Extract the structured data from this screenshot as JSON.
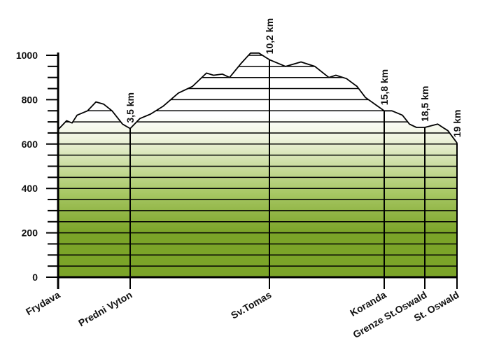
{
  "chart_data": {
    "type": "area",
    "color": "#7ba428",
    "x": [
      0,
      0.41,
      0.68,
      0.92,
      1.43,
      1.84,
      2.21,
      2.62,
      3.13,
      3.5,
      3.97,
      4.48,
      5.08,
      5.82,
      6.5,
      7.17,
      7.51,
      7.94,
      8.28,
      8.85,
      9.29,
      9.69,
      10.2,
      10.99,
      11.74,
      12.42,
      13.1,
      13.44,
      13.96,
      14.47,
      14.88,
      15.49,
      15.8,
      16.31,
      17.01,
      17.48,
      17.94,
      18.5,
      18.7,
      18.86,
      19
    ],
    "values": [
      665,
      705,
      695,
      730,
      750,
      790,
      780,
      750,
      690,
      670,
      715,
      735,
      770,
      830,
      860,
      920,
      910,
      915,
      900,
      965,
      1010,
      1010,
      980,
      950,
      970,
      950,
      900,
      910,
      895,
      860,
      810,
      770,
      750,
      750,
      730,
      690,
      675,
      675,
      690,
      660,
      605
    ],
    "xlim": [
      0,
      19
    ],
    "ylim": [
      0,
      1000
    ],
    "yticks": [
      0,
      200,
      400,
      600,
      800,
      1000
    ],
    "minor_yticks": [
      50,
      100,
      150,
      250,
      300,
      350,
      450,
      500,
      550,
      650,
      700,
      750,
      850,
      900,
      950
    ],
    "grid": true,
    "waypoints": [
      {
        "name": "Frydava",
        "km": 0
      },
      {
        "name": "Predni Vyton",
        "km": {
          "value": 3.5,
          "label": "3,5 km"
        }
      },
      {
        "name": "Sv.Tomas",
        "km": {
          "value": 10.2,
          "label": "10,2 km"
        }
      },
      {
        "name": "Koranda",
        "km": {
          "value": 15.8,
          "label": "15,8 km"
        }
      },
      {
        "name": "Grenze St.Oswald",
        "km": {
          "value": 18.5,
          "label": "18,5 km"
        }
      },
      {
        "name": "St. Oswald",
        "km": {
          "value": 19,
          "label": "19 km"
        }
      }
    ]
  }
}
